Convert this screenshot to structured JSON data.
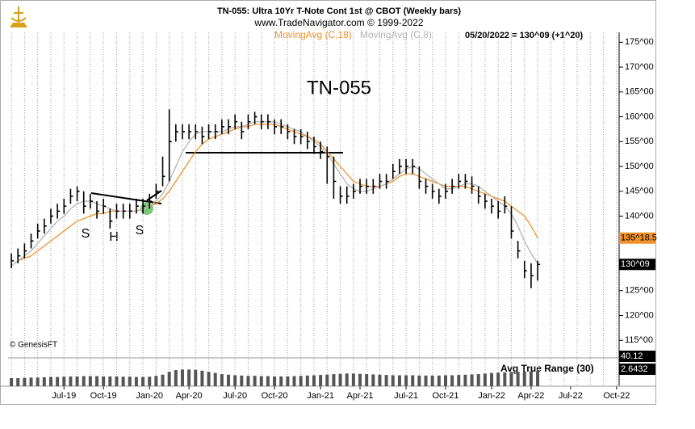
{
  "chart_data": {
    "type": "ohlc",
    "title": "TN-055:  Ultra 10Yr T-Note Cont 1st @ CBOT  (Weekly bars)",
    "subtitle": "www.TradeNavigator.com © 1999-2022",
    "last_bar_text": "05/20/2022 = 130^09 (+1^20)",
    "annotations": [
      "S",
      "H",
      "S"
    ],
    "source": "© GenesisFT",
    "categories": [
      null,
      null,
      null,
      null,
      null,
      null,
      null,
      null,
      "Jul-19",
      null,
      null,
      null,
      null,
      null,
      "Oct-19",
      null,
      null,
      null,
      null,
      null,
      null,
      "Jan-20",
      null,
      null,
      null,
      null,
      null,
      "Apr-20",
      null,
      null,
      null,
      null,
      null,
      null,
      "Jul-20",
      null,
      null,
      null,
      null,
      null,
      "Oct-20",
      null,
      null,
      null,
      null,
      null,
      null,
      "Jan-21",
      null,
      null,
      null,
      null,
      null,
      "Apr-21",
      null,
      null,
      null,
      null,
      null,
      null,
      "Jul-21",
      null,
      null,
      null,
      null,
      null,
      "Oct-21",
      null,
      null,
      null,
      null,
      null,
      null,
      "Jan-22",
      null,
      null,
      null,
      null,
      null,
      "Apr-22",
      null,
      null,
      null,
      null,
      null,
      "Jul-22",
      null,
      null,
      null,
      null,
      null,
      null,
      "Oct-22"
    ],
    "bars": {
      "name": "TN-055",
      "color": "#000000",
      "values": [
        131,
        132,
        133,
        135,
        137,
        138,
        140,
        141,
        142,
        144,
        145,
        142,
        143,
        141,
        142,
        139,
        141,
        141,
        141,
        142,
        142,
        143,
        145,
        148,
        155,
        157,
        157,
        157,
        157,
        156,
        157,
        157,
        158,
        158,
        159,
        157,
        159,
        160,
        159,
        159,
        158,
        158,
        157,
        156,
        156,
        155,
        154,
        153,
        152,
        147,
        144,
        144,
        145,
        146,
        146,
        146,
        147,
        147,
        149,
        150,
        150,
        150,
        147,
        146,
        145,
        144,
        145,
        146,
        147,
        147,
        146,
        144,
        143,
        142,
        141,
        142,
        137,
        133,
        129,
        128,
        130.28125,
        null,
        null,
        null,
        null,
        null,
        null,
        null,
        null,
        null,
        null,
        null,
        null
      ],
      "high": [
        132.5,
        133.5,
        134.5,
        136.5,
        138.5,
        139.5,
        141.5,
        142.5,
        143.5,
        145.5,
        146,
        145,
        144.5,
        143,
        143.5,
        141.5,
        142.5,
        142.5,
        142.5,
        143.5,
        143.5,
        144.5,
        146.5,
        152,
        161.5,
        158.5,
        158.5,
        158.5,
        158.5,
        158,
        158.5,
        158.5,
        159.5,
        159.5,
        160.5,
        159,
        160.5,
        161,
        160.5,
        160.5,
        159.5,
        159.5,
        158.5,
        157.5,
        157.5,
        157,
        156,
        155,
        154,
        152,
        146,
        146,
        146.5,
        147.5,
        147.5,
        147.5,
        148.5,
        148.5,
        150.5,
        151.5,
        151.5,
        151.5,
        150,
        147.5,
        146.5,
        145.5,
        146.5,
        147.5,
        148.5,
        148.5,
        148,
        146,
        144.5,
        143.5,
        143,
        144,
        142,
        135,
        131,
        130.5,
        131,
        null,
        null,
        null,
        null,
        null,
        null,
        null,
        null,
        null,
        null,
        null,
        null
      ],
      "low": [
        129.5,
        130.5,
        131.5,
        133.5,
        135.5,
        136.5,
        138.5,
        139.5,
        140.5,
        142.5,
        143,
        140.5,
        141.5,
        139.5,
        140.5,
        137.5,
        139.5,
        139.5,
        139.5,
        140.5,
        140.5,
        141.5,
        143.5,
        146,
        147,
        155,
        155.5,
        155.5,
        155.5,
        154.5,
        155.5,
        155.5,
        156.5,
        156.5,
        157.5,
        155.5,
        157.5,
        158.5,
        157.5,
        157.5,
        156.5,
        156.5,
        155.5,
        154.5,
        154.5,
        153.5,
        152.5,
        151.5,
        146.5,
        143.5,
        142.5,
        142.5,
        143.5,
        144.5,
        144.5,
        144.5,
        145.5,
        145.5,
        147.5,
        148.5,
        148.5,
        148.5,
        145.5,
        144.5,
        143.5,
        142.5,
        143.5,
        144.5,
        145.5,
        145.5,
        144.5,
        142.5,
        141.5,
        140.5,
        139.5,
        140.5,
        135.5,
        131.5,
        127.5,
        125.5,
        127,
        null,
        null,
        null,
        null,
        null,
        null,
        null,
        null,
        null,
        null,
        null,
        null
      ],
      "value_labels": {
        "80": "130^09"
      }
    },
    "series": [
      {
        "name": "MovingAvg (C,18)",
        "color": "#f0922b",
        "values": [
          130,
          131,
          131.5,
          132,
          133,
          134,
          135,
          136,
          137,
          138,
          139,
          139.5,
          140,
          140.5,
          140.5,
          141,
          141,
          141,
          141,
          141,
          141.5,
          142,
          142.5,
          143.5,
          145,
          147,
          149,
          151,
          153,
          154.5,
          155.5,
          156,
          156.5,
          157,
          157.5,
          158,
          158,
          158.5,
          158.5,
          158.5,
          158.5,
          158,
          157.5,
          157,
          156.5,
          156,
          155.5,
          154.5,
          153,
          151.5,
          150,
          148.5,
          147,
          146.5,
          146,
          146,
          146,
          146.5,
          147,
          148,
          148.5,
          148.5,
          148,
          147.5,
          147,
          146.5,
          146,
          146,
          146,
          146,
          145.5,
          145,
          144.5,
          144,
          143.5,
          143,
          142,
          141,
          140,
          138,
          135.578,
          null,
          null,
          null,
          null,
          null,
          null,
          null,
          null,
          null,
          null,
          null,
          null
        ],
        "value_labels": {
          "80": "135^18.5"
        }
      },
      {
        "name": "MovingAvg (C,8)",
        "color": "#b4b4b4",
        "values": [
          130,
          131,
          132,
          133,
          134.5,
          136,
          137.5,
          139,
          140,
          141.5,
          142.5,
          143,
          143,
          142.5,
          142,
          141.5,
          141,
          141,
          141,
          141,
          141.5,
          142,
          143,
          144.5,
          147,
          150,
          153,
          155,
          156.5,
          157,
          157,
          157,
          157,
          157.5,
          158,
          158,
          158.5,
          159,
          159,
          159,
          159,
          158.5,
          158,
          157.5,
          157,
          156,
          155,
          154,
          152.5,
          150.5,
          148.5,
          146.5,
          145.5,
          145,
          145,
          145.5,
          146,
          146.5,
          147.5,
          148.5,
          149.5,
          150,
          149.5,
          148.5,
          147.5,
          146.5,
          145.5,
          145.5,
          146,
          146.5,
          146.5,
          146,
          145,
          144,
          143,
          142,
          140.5,
          138,
          135,
          132.5,
          130.5,
          null,
          null,
          null,
          null,
          null,
          null,
          null,
          null,
          null,
          null,
          null,
          null
        ]
      }
    ],
    "ylim": [
      111.95,
      177.0
    ],
    "yticks": [
      {
        "value": 115,
        "label": "115^00"
      },
      {
        "value": 120,
        "label": "120^00"
      },
      {
        "value": 125,
        "label": "125^00"
      },
      {
        "value": 130,
        "label": "130^00"
      },
      {
        "value": 135,
        "label": "135^00"
      },
      {
        "value": 140,
        "label": "140^00"
      },
      {
        "value": 145,
        "label": "145^00"
      },
      {
        "value": 150,
        "label": "150^00"
      },
      {
        "value": 155,
        "label": "155^00"
      },
      {
        "value": 160,
        "label": "160^00"
      },
      {
        "value": 165,
        "label": "165^00"
      },
      {
        "value": 170,
        "label": "170^00"
      },
      {
        "value": 175,
        "label": "175^00"
      }
    ],
    "atr": {
      "name": "Avg True Range (30)",
      "color": "#555555",
      "scale_label": "40.12",
      "values": [
        1.4,
        1.4,
        1.45,
        1.5,
        1.5,
        1.55,
        1.6,
        1.6,
        1.65,
        1.7,
        1.7,
        1.75,
        1.75,
        1.75,
        1.7,
        1.7,
        1.7,
        1.65,
        1.65,
        1.6,
        1.6,
        1.65,
        1.8,
        2.0,
        2.5,
        2.8,
        2.9,
        2.9,
        2.85,
        2.7,
        2.5,
        2.3,
        2.1,
        2.0,
        1.9,
        1.85,
        1.8,
        1.8,
        1.75,
        1.75,
        1.7,
        1.7,
        1.7,
        1.75,
        1.8,
        1.85,
        1.9,
        1.95,
        2.0,
        2.1,
        2.15,
        2.2,
        2.2,
        2.15,
        2.1,
        2.05,
        2.0,
        1.95,
        1.9,
        1.9,
        1.9,
        1.9,
        1.85,
        1.85,
        1.85,
        1.85,
        1.9,
        1.9,
        1.95,
        2.0,
        2.05,
        2.1,
        2.2,
        2.3,
        2.35,
        2.4,
        2.45,
        2.5,
        2.55,
        2.6,
        2.6432,
        null,
        null,
        null,
        null,
        null,
        null,
        null,
        null,
        null,
        null,
        null,
        null
      ],
      "ylim": [
        0,
        4.5
      ],
      "value_labels": {
        "80": "2.6432"
      }
    }
  }
}
